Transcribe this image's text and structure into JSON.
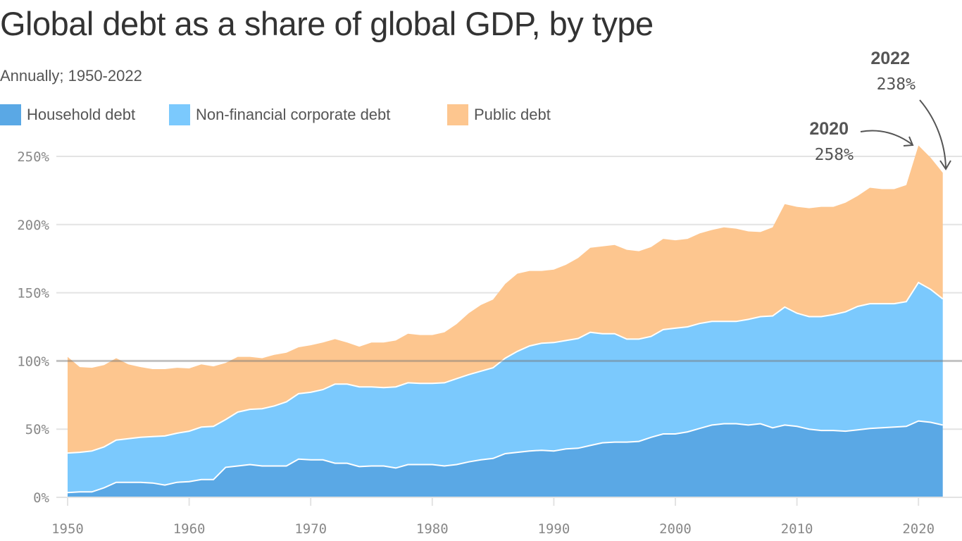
{
  "title": "Global debt as a share of global GDP, by type",
  "subtitle": "Annually; 1950-2022",
  "legend": [
    {
      "label": "Household debt",
      "color": "#5AA8E5"
    },
    {
      "label": "Non-financial corporate debt",
      "color": "#7BC9FD"
    },
    {
      "label": "Public debt",
      "color": "#FDC68F"
    }
  ],
  "annotations": [
    {
      "year_label": "2020",
      "value_label": "258%"
    },
    {
      "year_label": "2022",
      "value_label": "238%"
    }
  ],
  "chart_data": {
    "type": "area",
    "stacked": true,
    "title": "Global debt as a share of global GDP, by type",
    "subtitle": "Annually; 1950-2022",
    "xlim": [
      1950,
      2022
    ],
    "ylim": [
      0,
      260
    ],
    "yticks": [
      0,
      50,
      100,
      150,
      200,
      250
    ],
    "ytick_labels": [
      "0%",
      "50%",
      "100%",
      "150%",
      "200%",
      "250%"
    ],
    "xticks": [
      1950,
      1960,
      1970,
      1980,
      1990,
      2000,
      2010,
      2020
    ],
    "xtick_labels": [
      "1950",
      "1960",
      "1970",
      "1980",
      "1990",
      "2000",
      "2010",
      "2020"
    ],
    "grid": true,
    "legend_position": "top-left",
    "x": [
      1950,
      1951,
      1952,
      1953,
      1954,
      1955,
      1956,
      1957,
      1958,
      1959,
      1960,
      1961,
      1962,
      1963,
      1964,
      1965,
      1966,
      1967,
      1968,
      1969,
      1970,
      1971,
      1972,
      1973,
      1974,
      1975,
      1976,
      1977,
      1978,
      1979,
      1980,
      1981,
      1982,
      1983,
      1984,
      1985,
      1986,
      1987,
      1988,
      1989,
      1990,
      1991,
      1992,
      1993,
      1994,
      1995,
      1996,
      1997,
      1998,
      1999,
      2000,
      2001,
      2002,
      2003,
      2004,
      2005,
      2006,
      2007,
      2008,
      2009,
      2010,
      2011,
      2012,
      2013,
      2014,
      2015,
      2016,
      2017,
      2018,
      2019,
      2020,
      2021,
      2022
    ],
    "series": [
      {
        "name": "Household debt",
        "color": "#5AA8E5",
        "values": [
          3.5,
          4,
          4,
          7,
          11,
          11,
          11,
          10.5,
          9,
          11,
          11.5,
          13,
          13,
          22,
          23,
          24,
          23,
          23,
          23,
          28,
          27.5,
          27.5,
          25,
          25,
          22.5,
          23,
          23,
          21.5,
          24,
          24,
          24,
          23,
          24,
          26,
          27.5,
          28.5,
          32,
          33,
          34,
          34.5,
          34,
          35.5,
          36,
          38,
          40,
          40.5,
          40.5,
          41,
          44,
          46.5,
          46.5,
          48,
          50.5,
          53,
          54,
          54,
          53,
          54,
          51,
          53,
          52,
          50,
          49,
          49,
          48.5,
          49.5,
          50.5,
          51,
          51.5,
          52,
          56,
          55,
          53
        ]
      },
      {
        "name": "Non-financial corporate debt",
        "color": "#7BC9FD",
        "values": [
          29,
          29,
          30,
          30,
          31,
          32,
          33,
          34,
          36,
          36,
          37,
          38.5,
          39,
          35,
          39.5,
          40.5,
          42,
          44,
          47,
          48,
          49.5,
          51.5,
          58,
          58,
          58.5,
          58,
          57.5,
          59.5,
          60,
          59.5,
          59.5,
          61,
          63,
          64,
          65,
          66.5,
          70,
          74,
          77,
          78.5,
          79.5,
          79.5,
          80.5,
          83,
          80,
          79.5,
          75.5,
          75,
          74,
          76.5,
          77.5,
          77,
          77,
          76,
          75,
          75,
          77.5,
          78.5,
          82,
          86.5,
          83,
          82.5,
          83.5,
          85,
          87.5,
          90.5,
          91.5,
          91,
          90.5,
          91.5,
          101.5,
          97.5,
          92.5
        ]
      },
      {
        "name": "Public debt",
        "color": "#FDC68F",
        "values": [
          70.5,
          62.5,
          61,
          60,
          60,
          54.5,
          51.5,
          49.5,
          49,
          48,
          46,
          46,
          44,
          41.5,
          40.5,
          38.5,
          37,
          37.5,
          36,
          34,
          34.5,
          34.5,
          33,
          30.5,
          29.5,
          32.5,
          33,
          34,
          36,
          35.5,
          35.5,
          37,
          40,
          45,
          48.5,
          50,
          54.5,
          57,
          55,
          53,
          53.5,
          55.5,
          59,
          62,
          64,
          65,
          65.5,
          64.5,
          65.5,
          66.5,
          64.5,
          64.5,
          66,
          67,
          69,
          68,
          64.5,
          62,
          65,
          75.5,
          78,
          79.5,
          80.5,
          79,
          80,
          81,
          85,
          84,
          84,
          85.5,
          100.5,
          96.5,
          92.5
        ]
      }
    ]
  }
}
